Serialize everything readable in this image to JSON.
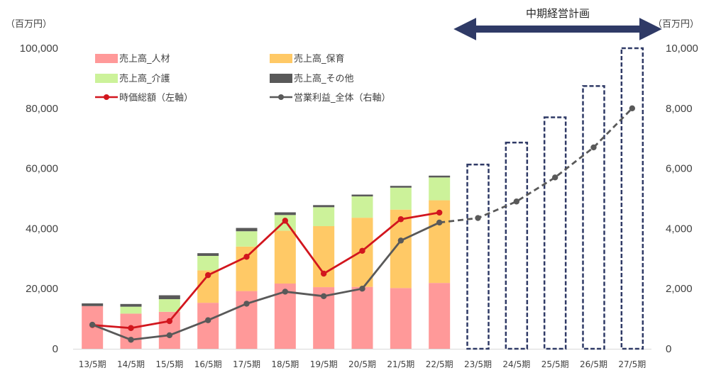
{
  "chart_data": {
    "type": "bar",
    "categories": [
      "13/5期",
      "14/5期",
      "15/5期",
      "16/5期",
      "17/5期",
      "18/5期",
      "19/5期",
      "20/5期",
      "21/5期",
      "22/5期",
      "23/5期",
      "24/5期",
      "25/5期",
      "26/5期",
      "27/5期"
    ],
    "left_axis": {
      "unit_label": "（百万円）",
      "ylim": [
        0,
        100000
      ],
      "ticks": [
        0,
        20000,
        40000,
        60000,
        80000,
        100000
      ],
      "tick_labels": [
        "0",
        "20,000",
        "40,000",
        "60,000",
        "80,000",
        "100,000"
      ]
    },
    "right_axis": {
      "unit_label": "（百万円）",
      "ylim": [
        0,
        10000
      ],
      "ticks": [
        0,
        2000,
        4000,
        6000,
        8000,
        10000
      ],
      "tick_labels": [
        "0",
        "2,000",
        "4,000",
        "6,000",
        "8,000",
        "10,000"
      ]
    },
    "stacked_series": [
      {
        "name": "売上高_人材",
        "color": "#ff9999",
        "values": [
          14200,
          11700,
          12300,
          15300,
          19200,
          21700,
          20500,
          20600,
          20200,
          21900
        ]
      },
      {
        "name": "売上高_保育",
        "color": "#ffc966",
        "values": [
          0,
          0,
          0,
          10800,
          14800,
          17600,
          20300,
          23000,
          26100,
          27500
        ]
      },
      {
        "name": "売上高_介護",
        "color": "#ccf29a",
        "values": [
          0,
          2300,
          4200,
          4800,
          5100,
          5200,
          6300,
          7100,
          7300,
          7600
        ]
      },
      {
        "name": "売上高_その他",
        "color": "#595959",
        "values": [
          900,
          900,
          1300,
          900,
          1100,
          900,
          700,
          600,
          600,
          600
        ]
      }
    ],
    "plan_bars": {
      "color": "#2f3a66",
      "values": [
        61300,
        68600,
        77000,
        87400,
        100000
      ]
    },
    "lines": [
      {
        "name": "時価総額（左軸）",
        "axis": "left",
        "color": "#d2161e",
        "values": [
          7900,
          6900,
          9200,
          24500,
          30600,
          42600,
          25000,
          32600,
          43100,
          45300
        ]
      },
      {
        "name": "営業利益_全体（右軸）",
        "axis": "right",
        "color": "#595959",
        "values": [
          800,
          300,
          450,
          950,
          1500,
          1900,
          1750,
          2000,
          3600,
          4200
        ],
        "forecast_values": [
          4200,
          4350,
          4900,
          5700,
          6700,
          8000
        ]
      }
    ],
    "annotation": "中期経営計画",
    "legend_position": "top-left",
    "grid": false
  }
}
